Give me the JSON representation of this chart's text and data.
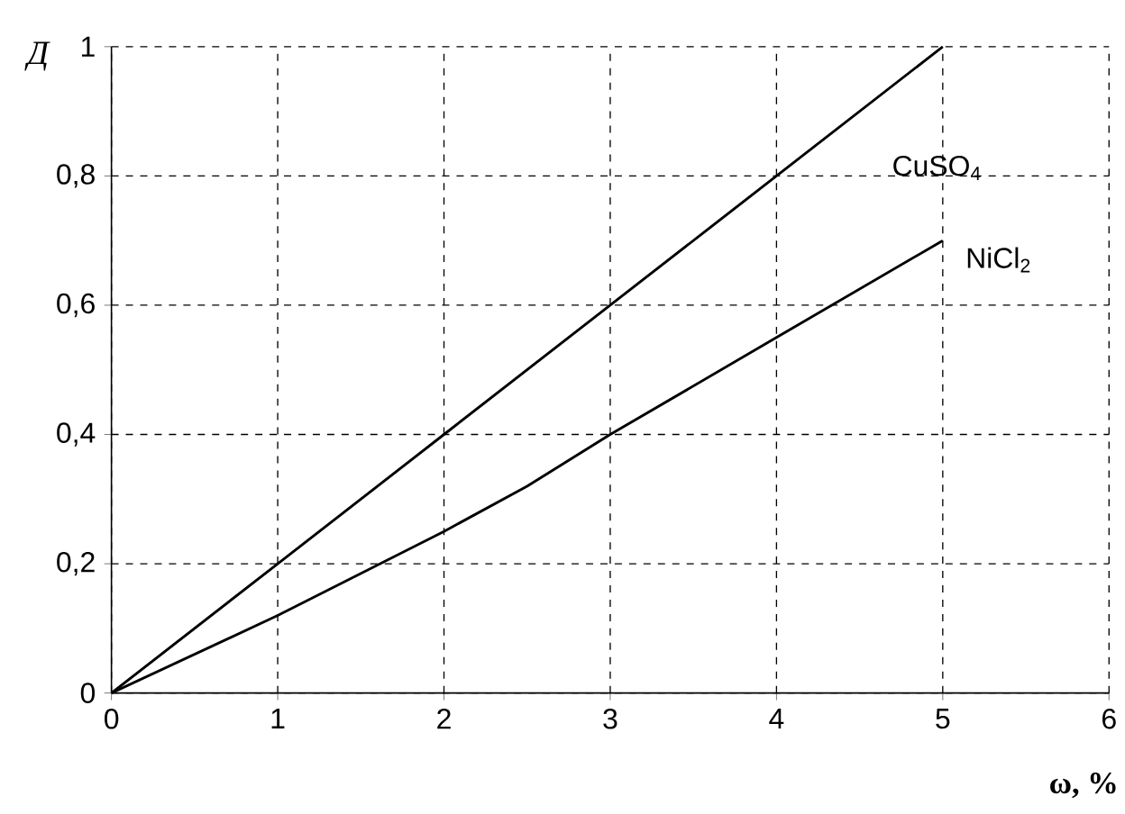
{
  "chart_data": {
    "type": "line",
    "xlabel": "ω, %",
    "ylabel": "Д",
    "x": [
      0,
      1,
      2,
      3,
      4,
      5
    ],
    "series": [
      {
        "name": "CuSO$_{4}$",
        "color": "#000000",
        "values": [
          0,
          0.2,
          0.4,
          0.6,
          0.8,
          1.0
        ]
      },
      {
        "name": "NiCl$_{2}$",
        "color": "#000000",
        "x": [
          0,
          1,
          2,
          2.5,
          3,
          4,
          5
        ],
        "values": [
          0,
          0.12,
          0.25,
          0.32,
          0.4,
          0.55,
          0.7
        ]
      }
    ],
    "xlim": [
      0,
      6
    ],
    "ylim": [
      0,
      1
    ],
    "xticks": [
      0,
      1,
      2,
      3,
      4,
      5,
      6
    ],
    "yticks": [
      0,
      {
        "value": 0.2,
        "label": "0,2"
      },
      {
        "value": 0.4,
        "label": "0,4"
      },
      {
        "value": 0.6,
        "label": "0,6"
      },
      {
        "value": 0.8,
        "label": "0,8"
      },
      1
    ],
    "grid": true
  }
}
